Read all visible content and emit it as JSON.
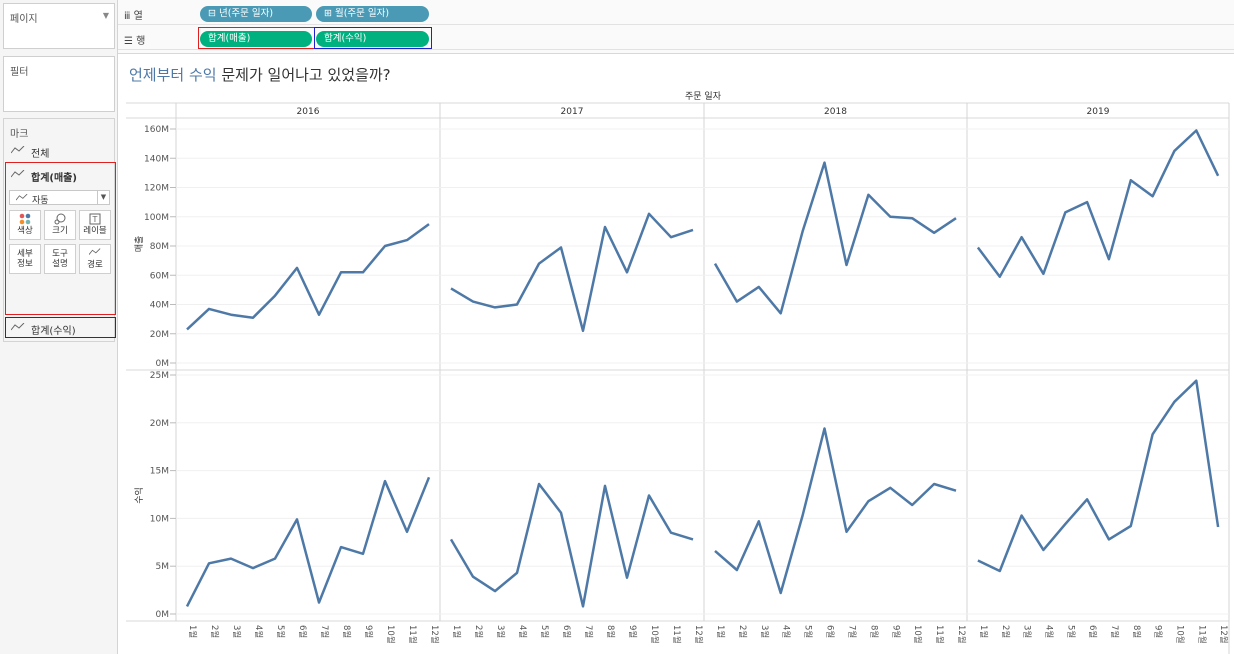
{
  "left_panel": {
    "pages_title": "페이지",
    "filters_title": "필터",
    "marks_title": "마크",
    "all_label": "전체",
    "sales_label": "합계(매출)",
    "mark_type": "자동",
    "buttons": [
      "색상",
      "크기",
      "레이블",
      "세부\n정보",
      "도구\n설명",
      "경로"
    ],
    "btn_color": "색상",
    "btn_size": "크기",
    "btn_label": "레이블",
    "btn_detail_1": "세부",
    "btn_detail_2": "정보",
    "btn_tooltip_1": "도구",
    "btn_tooltip_2": "설명",
    "btn_path": "경로",
    "profit_label": "합계(수익)"
  },
  "shelves": {
    "columns_label": "열",
    "rows_label": "행",
    "col_pill_1": "년(주문 일자)",
    "col_pill_2": "월(주문 일자)",
    "row_pill_1": "합계(매출)",
    "row_pill_2": "합계(수익)"
  },
  "view": {
    "title_highlight": "언제부터 수익",
    "title_rest": " 문제가 일어나고 있었을까?"
  },
  "colors": {
    "line": "#4e79a7",
    "pill_dimension": "#4a9ab5",
    "pill_measure": "#00b180",
    "highlight_red": "#e02020",
    "highlight_blue": "#2020d0"
  },
  "chart_data": {
    "type": "line",
    "column_header": "주문 일자",
    "years": [
      "2016",
      "2017",
      "2018",
      "2019"
    ],
    "months": [
      "1월",
      "2월",
      "3월",
      "4월",
      "5월",
      "6월",
      "7월",
      "8월",
      "9월",
      "10월",
      "11월",
      "12월"
    ],
    "panels": [
      {
        "ylabel": "매출",
        "ylim": [
          0,
          160
        ],
        "ticks": [
          "0M",
          "20M",
          "40M",
          "60M",
          "80M",
          "100M",
          "120M",
          "140M",
          "160M"
        ],
        "series": [
          {
            "year": "2016",
            "values": [
              23,
              37,
              33,
              31,
              46,
              65,
              33,
              62,
              62,
              80,
              84,
              95
            ]
          },
          {
            "year": "2017",
            "values": [
              51,
              42,
              38,
              40,
              68,
              79,
              22,
              93,
              62,
              102,
              86,
              91
            ]
          },
          {
            "year": "2018",
            "values": [
              68,
              42,
              52,
              34,
              90,
              137,
              67,
              115,
              100,
              99,
              89,
              99
            ]
          },
          {
            "year": "2019",
            "values": [
              79,
              59,
              86,
              61,
              103,
              110,
              71,
              125,
              114,
              145,
              159,
              128
            ]
          }
        ]
      },
      {
        "ylabel": "수익",
        "ylim": [
          0,
          25
        ],
        "ticks": [
          "0M",
          "5M",
          "10M",
          "15M",
          "20M",
          "25M"
        ],
        "series": [
          {
            "year": "2016",
            "values": [
              0.8,
              5.3,
              5.8,
              4.8,
              5.8,
              9.9,
              1.2,
              7.0,
              6.3,
              13.9,
              8.6,
              14.3
            ]
          },
          {
            "year": "2017",
            "values": [
              7.8,
              3.9,
              2.4,
              4.3,
              13.6,
              10.6,
              0.8,
              13.4,
              3.8,
              12.4,
              8.5,
              7.8
            ]
          },
          {
            "year": "2018",
            "values": [
              6.6,
              4.6,
              9.7,
              2.2,
              10.3,
              19.4,
              8.6,
              11.8,
              13.2,
              11.4,
              13.6,
              12.9
            ]
          },
          {
            "year": "2019",
            "values": [
              5.6,
              4.5,
              10.3,
              6.7,
              9.4,
              12.0,
              7.8,
              9.2,
              18.8,
              22.2,
              24.4,
              9.1
            ]
          }
        ]
      }
    ]
  }
}
